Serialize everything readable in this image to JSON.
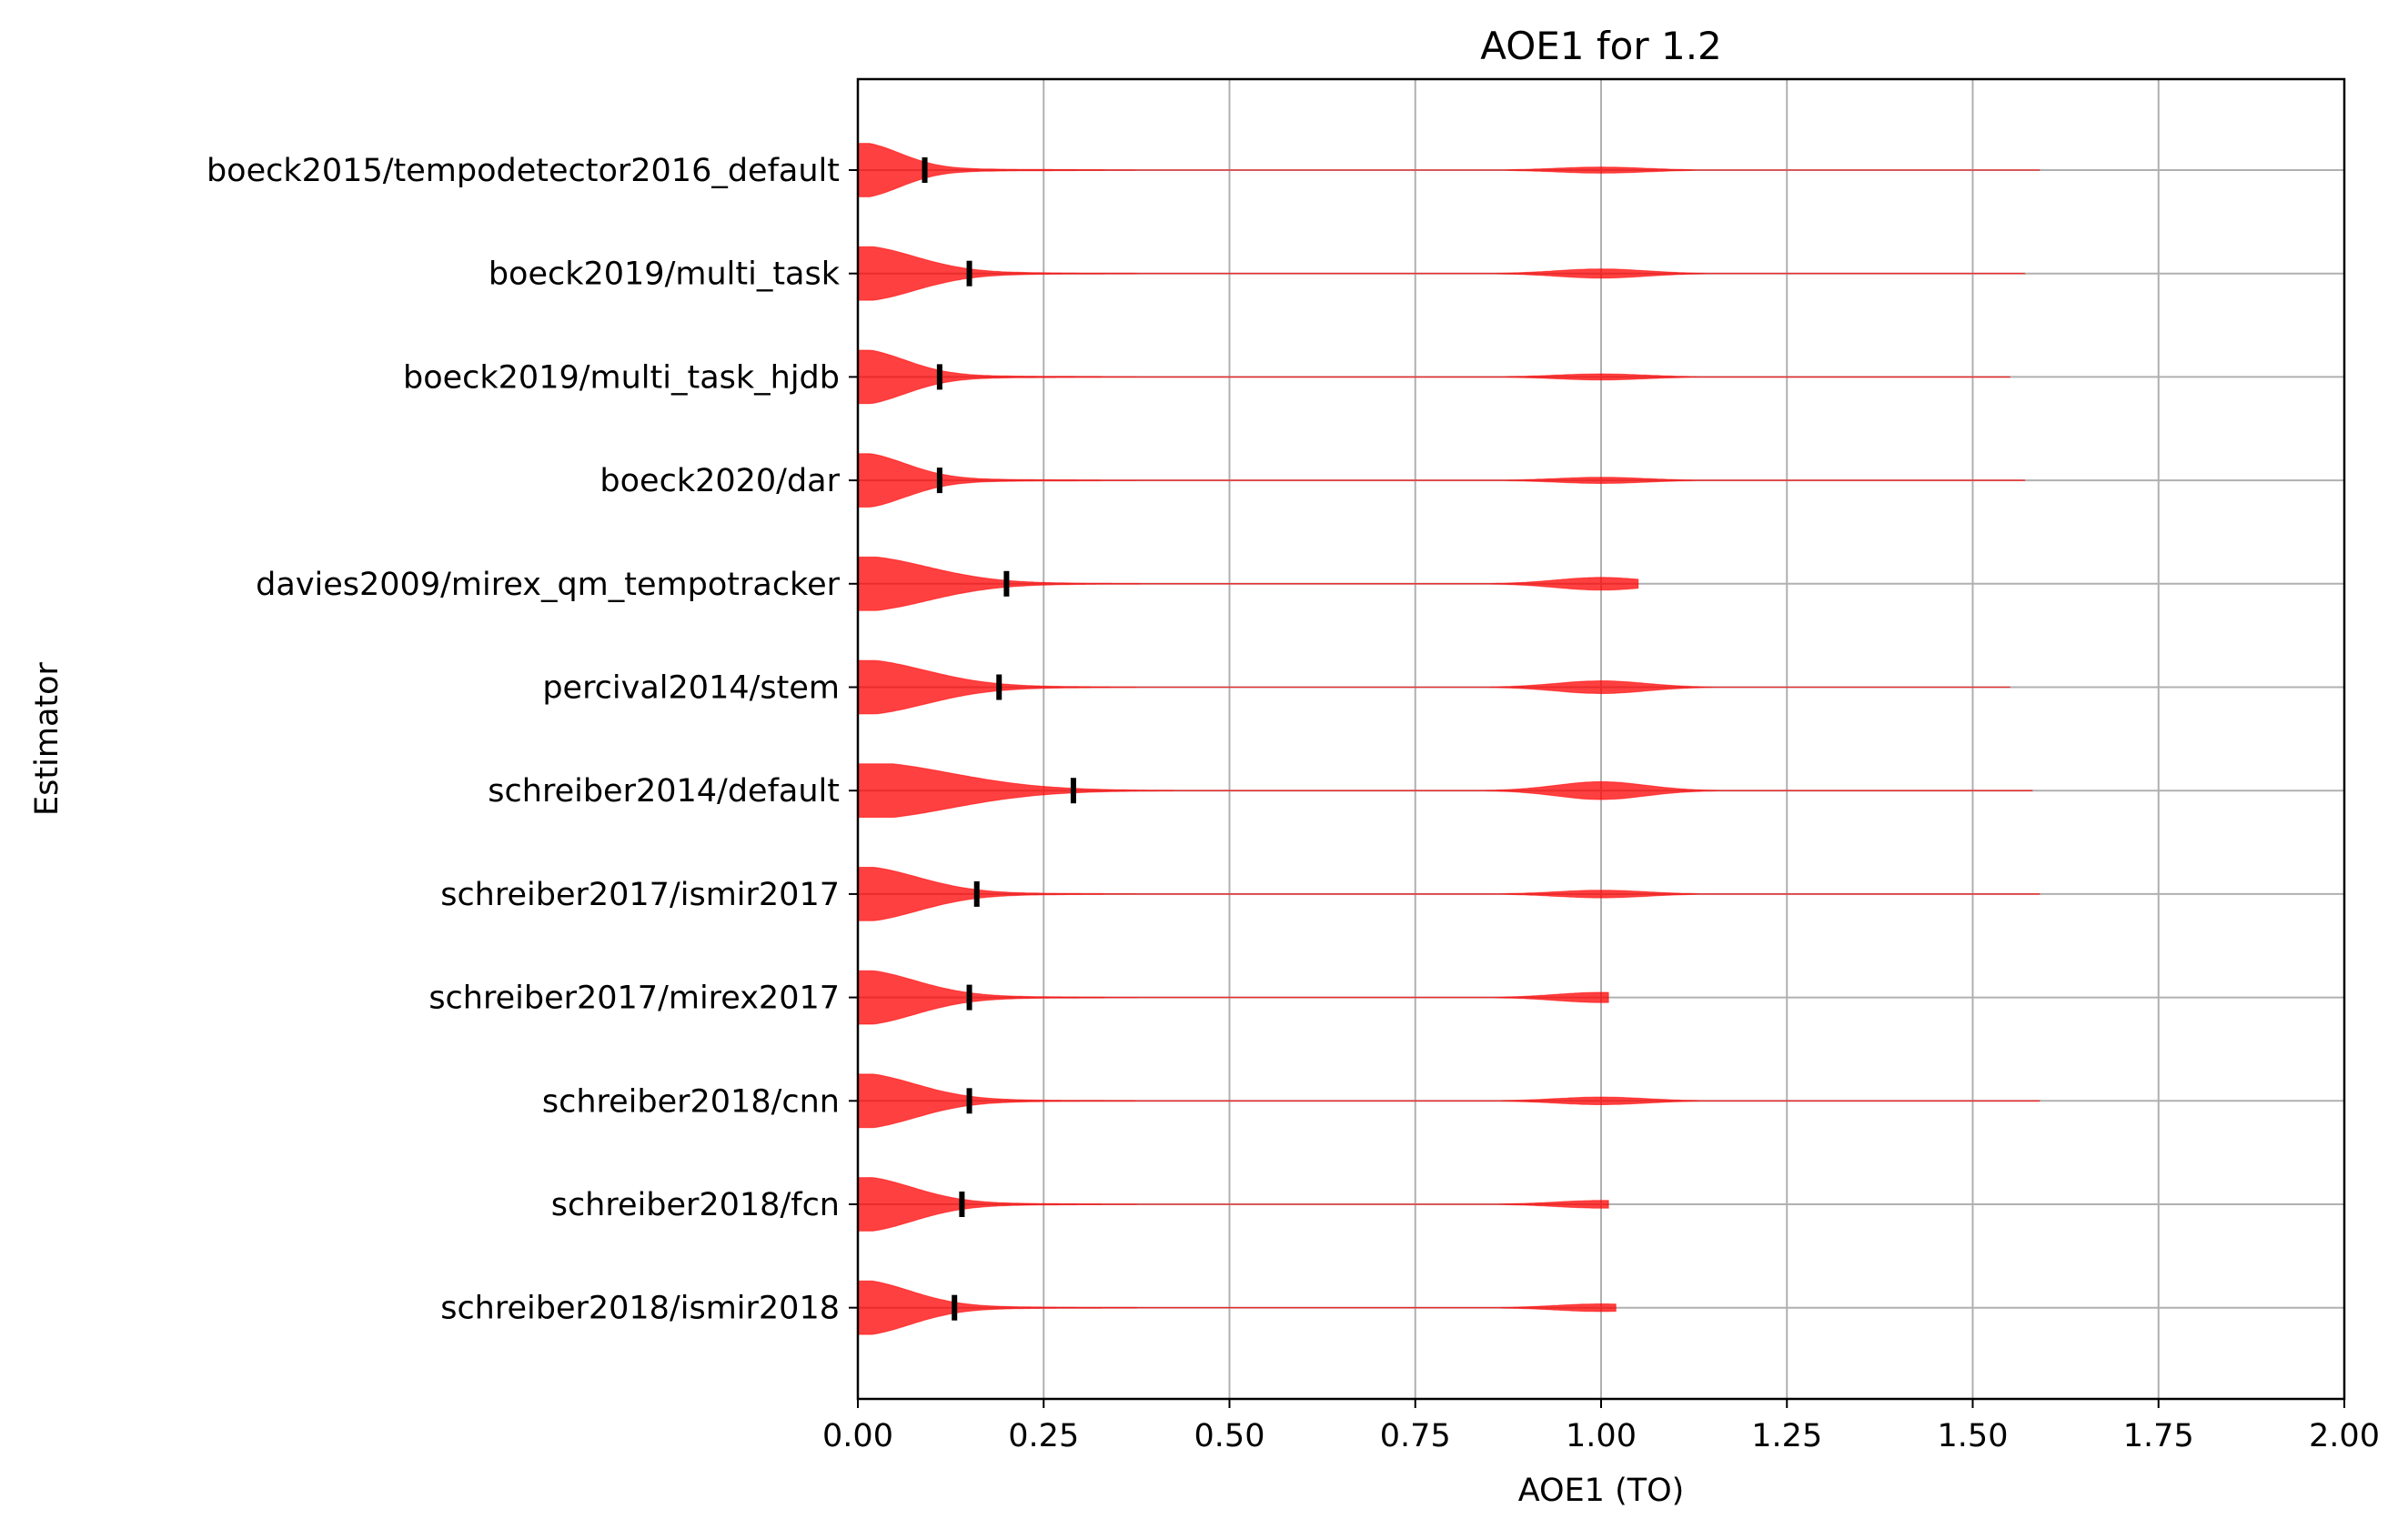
{
  "chart_data": {
    "type": "violin",
    "orientation": "horizontal",
    "title": "AOE1 for 1.2",
    "xlabel": "AOE1 (TO)",
    "ylabel": "Estimator",
    "xlim": [
      0,
      2.0
    ],
    "xticks": [
      "0.00",
      "0.25",
      "0.50",
      "0.75",
      "1.00",
      "1.25",
      "1.50",
      "1.75",
      "2.00"
    ],
    "grid": true,
    "violin_color": "#ff0000",
    "median_color": "#000000",
    "series": [
      {
        "name": "boeck2015/tempodetector2016_default",
        "median": 0.09,
        "max": 1.59,
        "main_width": 1.0,
        "secondary_center": 1.0,
        "secondary_width": 0.12
      },
      {
        "name": "boeck2019/multi_task",
        "median": 0.15,
        "max": 1.57,
        "main_width": 1.0,
        "secondary_center": 1.0,
        "secondary_width": 0.18
      },
      {
        "name": "boeck2019/multi_task_hjdb",
        "median": 0.11,
        "max": 1.55,
        "main_width": 1.0,
        "secondary_center": 1.0,
        "secondary_width": 0.12
      },
      {
        "name": "boeck2020/dar",
        "median": 0.11,
        "max": 1.57,
        "main_width": 1.0,
        "secondary_center": 1.0,
        "secondary_width": 0.12
      },
      {
        "name": "davies2009/mirex_qm_tempotracker",
        "median": 0.2,
        "max": 1.05,
        "main_width": 1.0,
        "secondary_center": 1.0,
        "secondary_width": 0.25
      },
      {
        "name": "percival2014/stem",
        "median": 0.19,
        "max": 1.55,
        "main_width": 1.0,
        "secondary_center": 1.0,
        "secondary_width": 0.25
      },
      {
        "name": "schreiber2014/default",
        "median": 0.29,
        "max": 1.58,
        "main_width": 1.05,
        "secondary_center": 1.0,
        "secondary_width": 0.35
      },
      {
        "name": "schreiber2017/ismir2017",
        "median": 0.16,
        "max": 1.59,
        "main_width": 1.0,
        "secondary_center": 1.0,
        "secondary_width": 0.15
      },
      {
        "name": "schreiber2017/mirex2017",
        "median": 0.15,
        "max": 1.01,
        "main_width": 1.0,
        "secondary_center": 1.0,
        "secondary_width": 0.2
      },
      {
        "name": "schreiber2018/cnn",
        "median": 0.15,
        "max": 1.59,
        "main_width": 1.0,
        "secondary_center": 1.0,
        "secondary_width": 0.15
      },
      {
        "name": "schreiber2018/fcn",
        "median": 0.14,
        "max": 1.01,
        "main_width": 1.0,
        "secondary_center": 1.0,
        "secondary_width": 0.15
      },
      {
        "name": "schreiber2018/ismir2018",
        "median": 0.13,
        "max": 1.02,
        "main_width": 1.0,
        "secondary_center": 1.0,
        "secondary_width": 0.15
      }
    ]
  }
}
